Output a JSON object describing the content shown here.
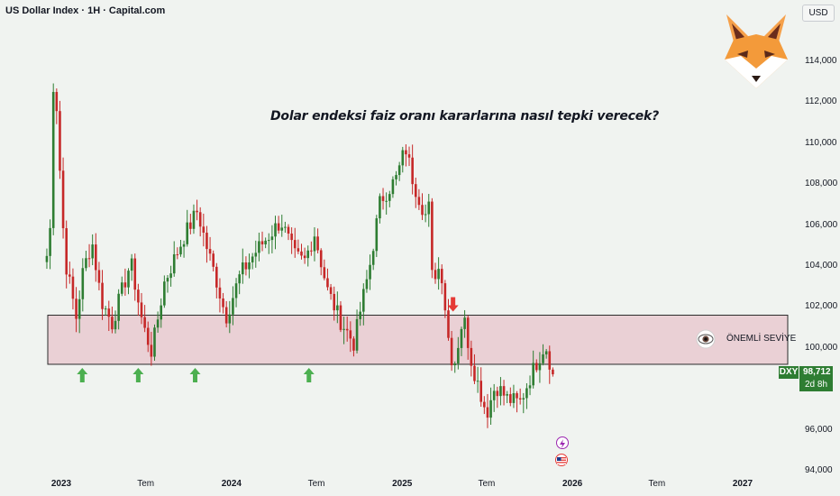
{
  "header": {
    "symbol": "US Dollar Index · 1H · Capital.com",
    "currency": "USD"
  },
  "annotation": {
    "title": "Dolar endeksi faiz oranı kararlarına nasıl tepki verecek?",
    "zone_label": "ÖNEMLİ SEVİYE"
  },
  "price_tag": {
    "symbol": "DXY",
    "price": "98,712",
    "countdown": "2d 8h"
  },
  "y_axis_labels": [
    "114,000",
    "112,000",
    "110,000",
    "108,000",
    "106,000",
    "104,000",
    "102,000",
    "100,000",
    "96,000",
    "94,000"
  ],
  "x_axis_labels": [
    "2023",
    "Tem",
    "2024",
    "Tem",
    "2025",
    "Tem",
    "2026",
    "Tem",
    "2027"
  ],
  "colors": {
    "up": "#2e7d32",
    "down": "#c62828",
    "zone_fill": "#e8c4cc",
    "arrow_up": "#4caf50",
    "arrow_down": "#e53935",
    "price_tag": "#2e7d32"
  },
  "icons": [
    "fox-logo-icon",
    "eye-icon",
    "lightning-event-icon",
    "us-flag-event-icon",
    "arrow-up-icon",
    "arrow-down-icon"
  ],
  "chart_data": {
    "type": "candlestick",
    "title": "Dolar endeksi faiz oranı kararlarına nasıl tepki verecek?",
    "y_axis": {
      "label": "USD",
      "range": [
        94,
        116
      ]
    },
    "support_zone": [
      99.2,
      101.6
    ],
    "markers_up": [
      "2023-02",
      "2023-06",
      "2023-10",
      "2024-06"
    ],
    "markers_down": [
      "2025-04"
    ],
    "current_price": 98.712,
    "anchor_closes": [
      [
        "2022-12-01",
        104.5
      ],
      [
        "2022-12-08",
        105.8
      ],
      [
        "2022-12-14",
        113.0
      ],
      [
        "2022-12-22",
        111.8
      ],
      [
        "2023-01-03",
        106.5
      ],
      [
        "2023-01-10",
        104.2
      ],
      [
        "2023-02-02",
        101.5
      ],
      [
        "2023-02-17",
        103.8
      ],
      [
        "2023-03-08",
        105.2
      ],
      [
        "2023-03-28",
        102.3
      ],
      [
        "2023-04-20",
        101.2
      ],
      [
        "2023-05-30",
        104.2
      ],
      [
        "2023-06-25",
        101.1
      ],
      [
        "2023-07-14",
        99.8
      ],
      [
        "2023-08-10",
        103.2
      ],
      [
        "2023-09-20",
        105.4
      ],
      [
        "2023-10-20",
        106.7
      ],
      [
        "2023-11-08",
        105.0
      ],
      [
        "2023-12-01",
        103.2
      ],
      [
        "2023-12-20",
        101.5
      ],
      [
        "2024-01-20",
        103.6
      ],
      [
        "2024-02-25",
        104.8
      ],
      [
        "2024-04-16",
        106.2
      ],
      [
        "2024-05-15",
        104.5
      ],
      [
        "2024-06-05",
        104.2
      ],
      [
        "2024-06-27",
        105.6
      ],
      [
        "2024-07-25",
        102.8
      ],
      [
        "2024-08-20",
        101.4
      ],
      [
        "2024-09-20",
        100.2
      ],
      [
        "2024-10-01",
        101.6
      ],
      [
        "2024-10-22",
        103.8
      ],
      [
        "2024-11-15",
        107.2
      ],
      [
        "2024-12-20",
        108.3
      ],
      [
        "2025-01-08",
        109.8
      ],
      [
        "2025-01-25",
        108.1
      ],
      [
        "2025-02-20",
        106.5
      ],
      [
        "2025-03-02",
        107.0
      ],
      [
        "2025-03-06",
        103.5
      ],
      [
        "2025-03-25",
        104.0
      ],
      [
        "2025-04-10",
        100.5
      ],
      [
        "2025-04-21",
        99.0
      ],
      [
        "2025-05-12",
        101.6
      ],
      [
        "2025-05-30",
        99.3
      ],
      [
        "2025-07-01",
        96.8
      ],
      [
        "2025-07-20",
        98.2
      ],
      [
        "2025-08-15",
        97.5
      ],
      [
        "2025-09-10",
        97.3
      ],
      [
        "2025-10-01",
        98.5
      ],
      [
        "2025-10-20",
        99.5
      ],
      [
        "2025-11-04",
        100.2
      ],
      [
        "2025-11-20",
        98.712
      ]
    ]
  }
}
